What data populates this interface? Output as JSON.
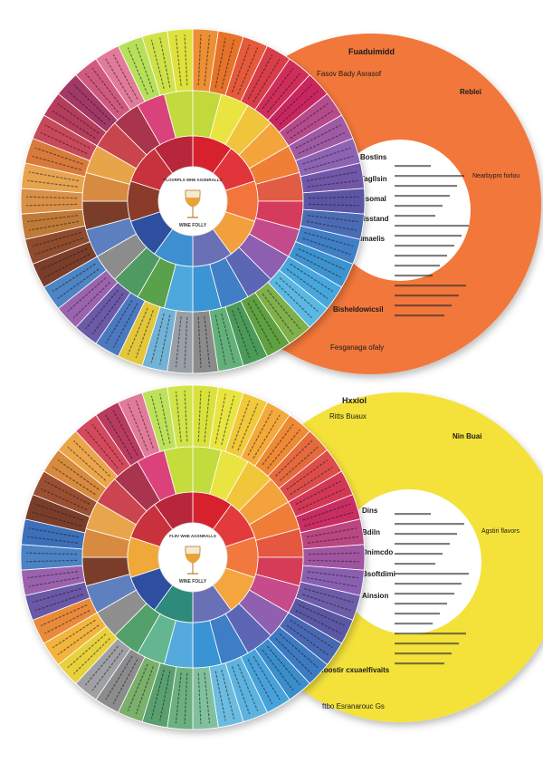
{
  "wheels": [
    {
      "id": "top",
      "card_color": "#f2773a",
      "card_heading": "Fuaduimidd",
      "card_subheading": "Fasov Bady Asrasof",
      "side_label": "Reblei",
      "side_label_right": "Nearbypro forlou",
      "card_list_labels": [
        "Bostins",
        "Tagllsin",
        "Bsomal",
        "Hsstand",
        "Imaelis"
      ],
      "card_bottom_heading": "Bisheldowicsil",
      "card_bottom_sub": "Fesganaga ofaly",
      "hub_top_text": "FLOVRPLS WHE AGSNRALLS",
      "hub_bottom_text": "WINE FOLLY",
      "outer_segment_colors": [
        "#ec8f34",
        "#e5732a",
        "#e55a3a",
        "#d83e4a",
        "#cf2e5a",
        "#c9285f",
        "#b54b8b",
        "#9f5aa4",
        "#8d64b3",
        "#7257a8",
        "#5c55a4",
        "#4b6cb5",
        "#3f7ec6",
        "#3e92d0",
        "#46a6dc",
        "#5ab8e2",
        "#7fb04a",
        "#5fa040",
        "#4c9a5a",
        "#64b07a",
        "#8b8b8b",
        "#9a9fa6",
        "#6fb3d6",
        "#e3c73a",
        "#4b79c0",
        "#6a5aa8",
        "#9b64ad",
        "#4d84c4",
        "#7a3e2c",
        "#8e4b2e",
        "#c07a39",
        "#d99147",
        "#e6a44f",
        "#d87a3a",
        "#c8485a",
        "#b53c5c",
        "#a23766",
        "#d05a7d",
        "#e27a99",
        "#b6e05a",
        "#cfe24a",
        "#dfe23e"
      ],
      "middle_segment_colors": [
        "#c1d93a",
        "#e9e440",
        "#f0c43a",
        "#f3a43a",
        "#ee7f36",
        "#e15b44",
        "#d43a5b",
        "#c34b8c",
        "#8e5fb0",
        "#5c66b5",
        "#3f7fc6",
        "#3a94d4",
        "#4fa8dd",
        "#5aa14c",
        "#4f9a64",
        "#8c8c8c",
        "#5b7fbf",
        "#7a3e2c",
        "#d78b3f",
        "#e7a44a",
        "#c8454e",
        "#a8354c",
        "#d9427a",
        "#c2da3d"
      ],
      "inner_segment_colors": [
        "#d7242f",
        "#e0353a",
        "#f2763b",
        "#f2a03d",
        "#6a6fb6",
        "#3e8fcf",
        "#2f4fa0",
        "#8a3b2b",
        "#c7333e",
        "#b8283a"
      ]
    },
    {
      "id": "bottom",
      "card_color": "#f4e23a",
      "card_heading": "Hxxiol",
      "card_subheading": "Ritts Buaux",
      "side_label": "Nin Buai",
      "side_label_right": "Agstiri flavors",
      "card_list_labels": [
        "Dins",
        "Bdiln",
        "Dnimcdo",
        "Bsoftdimi",
        "Ainsion"
      ],
      "card_bottom_heading": "Roostir cxuaelfivaits",
      "card_bottom_sub": "ftbo Esranarouc Gs",
      "hub_top_text": "FLIIV WHE AGSNRALLS",
      "hub_bottom_text": "WINE FOLLY",
      "outer_segment_colors": [
        "#d9e23c",
        "#e9e540",
        "#f1c93b",
        "#f3aa3a",
        "#ee8a36",
        "#e56a3c",
        "#dc4e4a",
        "#d23757",
        "#c92d62",
        "#b94682",
        "#a054a0",
        "#8a5fb0",
        "#6d5ca8",
        "#5a58a4",
        "#4868b3",
        "#3d7ac2",
        "#3b8dcc",
        "#46a2d9",
        "#5bb3df",
        "#6cbbe0",
        "#80c09e",
        "#6cb07f",
        "#5a9f70",
        "#7ab06a",
        "#8c8c8c",
        "#9ea0a4",
        "#e7d23c",
        "#f2b43c",
        "#e98a3a",
        "#6a58a6",
        "#9a62ad",
        "#4c83c4",
        "#3e6fb9",
        "#7a3e2c",
        "#9a5030",
        "#d88a3c",
        "#eba64b",
        "#d4485b",
        "#b83a5e",
        "#e27a99",
        "#bde25a",
        "#d1e44a"
      ],
      "middle_segment_colors": [
        "#c3dc3e",
        "#e9e440",
        "#f2c63b",
        "#f4a23b",
        "#ef7d37",
        "#e4583f",
        "#d63a58",
        "#c64b8a",
        "#8f5eb0",
        "#5c66b5",
        "#3d7ec6",
        "#3994d4",
        "#54aadd",
        "#64b690",
        "#53a06b",
        "#8e8e8e",
        "#5e80bf",
        "#7a3e2c",
        "#d88b40",
        "#e8a54b",
        "#ca4550",
        "#a8354d",
        "#db437b",
        "#c5dc3e"
      ],
      "inner_segment_colors": [
        "#d7242f",
        "#e33b3c",
        "#f2793c",
        "#f4a53d",
        "#6a6fb6",
        "#2d8a7a",
        "#2f4fa0",
        "#f0a83a",
        "#c7333e",
        "#b8283a"
      ]
    }
  ]
}
